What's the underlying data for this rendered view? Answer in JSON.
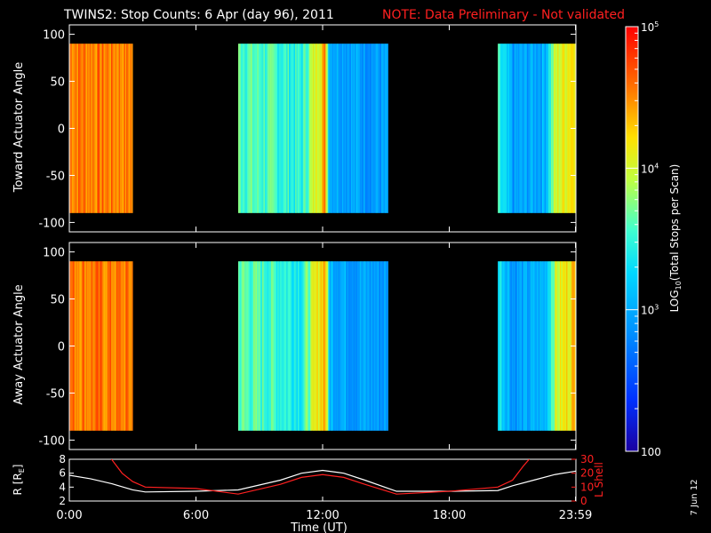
{
  "header": {
    "title": "TWINS2: Stop Counts:  6 Apr (day  96), 2011",
    "note": "NOTE: Data Preliminary - Not validated"
  },
  "footer": {
    "date_stamp": "7 Jun 12"
  },
  "colorbar": {
    "label": "LOG10(Total Stops per Scan)",
    "label_main": "LOG",
    "label_sub": "10",
    "label_rest": "(Total Stops per Scan)",
    "ticks": [
      {
        "value": 100,
        "label": "100"
      },
      {
        "value": 1000,
        "label": "10^3"
      },
      {
        "value": 10000,
        "label": "10^4"
      },
      {
        "value": 100000,
        "label": "10^5"
      }
    ],
    "range": [
      100,
      100000
    ],
    "scale": "log"
  },
  "colors": {
    "background": "#000000",
    "text": "#ffffff",
    "note": "#ff2020",
    "lshell": "#ff2020",
    "r_curve": "#ffffff"
  },
  "chart_data": [
    {
      "type": "heatmap",
      "panel": "toward",
      "ylabel": "Toward Actuator Angle",
      "ylim": [
        -110,
        110
      ],
      "yticks": [
        100,
        50,
        0,
        -50,
        -100
      ],
      "x_range_hours": [
        0,
        24
      ],
      "data_y_extent": [
        -90,
        90
      ],
      "coverage_hours": [
        [
          0.0,
          3.0
        ],
        [
          8.0,
          15.1
        ],
        [
          20.3,
          23.98
        ]
      ],
      "intensity_profile": [
        {
          "t": 0.0,
          "v": 0.86
        },
        {
          "t": 3.0,
          "v": 0.84
        },
        {
          "t": 8.0,
          "v": 0.55
        },
        {
          "t": 9.5,
          "v": 0.52
        },
        {
          "t": 11.0,
          "v": 0.48
        },
        {
          "t": 12.1,
          "v": 0.82
        },
        {
          "t": 12.3,
          "v": 0.36
        },
        {
          "t": 13.5,
          "v": 0.32
        },
        {
          "t": 15.1,
          "v": 0.3
        },
        {
          "t": 20.3,
          "v": 0.48
        },
        {
          "t": 21.0,
          "v": 0.3
        },
        {
          "t": 22.5,
          "v": 0.35
        },
        {
          "t": 23.0,
          "v": 0.65
        },
        {
          "t": 23.98,
          "v": 0.78
        }
      ]
    },
    {
      "type": "heatmap",
      "panel": "away",
      "ylabel": "Away Actuator Angle",
      "ylim": [
        -110,
        110
      ],
      "yticks": [
        100,
        50,
        0,
        -50,
        -100
      ],
      "x_range_hours": [
        0,
        24
      ],
      "data_y_extent": [
        -90,
        90
      ],
      "coverage_hours": [
        [
          0.0,
          3.0
        ],
        [
          8.0,
          15.1
        ],
        [
          20.3,
          23.98
        ]
      ],
      "intensity_profile": [
        {
          "t": 0.0,
          "v": 0.86
        },
        {
          "t": 3.0,
          "v": 0.84
        },
        {
          "t": 8.0,
          "v": 0.55
        },
        {
          "t": 9.5,
          "v": 0.52
        },
        {
          "t": 11.0,
          "v": 0.48
        },
        {
          "t": 12.1,
          "v": 0.82
        },
        {
          "t": 12.3,
          "v": 0.36
        },
        {
          "t": 13.5,
          "v": 0.32
        },
        {
          "t": 15.1,
          "v": 0.3
        },
        {
          "t": 20.3,
          "v": 0.48
        },
        {
          "t": 21.0,
          "v": 0.3
        },
        {
          "t": 22.5,
          "v": 0.35
        },
        {
          "t": 23.0,
          "v": 0.65
        },
        {
          "t": 23.98,
          "v": 0.78
        }
      ]
    },
    {
      "type": "line",
      "panel": "orbit",
      "xlabel": "Time (UT)",
      "x_tick_labels": [
        {
          "t": 0,
          "label": "0:00"
        },
        {
          "t": 6,
          "label": "6:00"
        },
        {
          "t": 12,
          "label": "12:00"
        },
        {
          "t": 18,
          "label": "18:00"
        },
        {
          "t": 23.98,
          "label": "23:59"
        }
      ],
      "ylabel_left": "R [RE]",
      "ylabel_left_main": "R [R",
      "ylabel_left_sub": "E",
      "ylabel_left_end": "]",
      "ylim_left": [
        2,
        8
      ],
      "yticks_left": [
        2,
        4,
        6,
        8
      ],
      "ylabel_right": "L Shell",
      "ylim_right": [
        0,
        30
      ],
      "yticks_right": [
        0,
        10,
        20,
        30
      ],
      "series": [
        {
          "name": "R [RE]",
          "axis": "left",
          "x": [
            0,
            1,
            2,
            3,
            3.6,
            6,
            8,
            10,
            11,
            12,
            13,
            14,
            15.5,
            18,
            20.3,
            21,
            22,
            23,
            24
          ],
          "y": [
            5.7,
            5.2,
            4.5,
            3.6,
            3.3,
            3.4,
            3.6,
            5.0,
            6.0,
            6.4,
            6.0,
            5.0,
            3.4,
            3.4,
            3.5,
            4.2,
            5.0,
            5.8,
            6.3
          ]
        },
        {
          "name": "L Shell",
          "axis": "right",
          "x": [
            1.9,
            2.5,
            3.0,
            3.6,
            6.0,
            8.0,
            10.0,
            11.0,
            12.0,
            13.0,
            14.0,
            15.5,
            18.0,
            20.3,
            21.0,
            21.5,
            21.9
          ],
          "y": [
            32,
            20,
            14,
            10,
            9,
            5,
            12,
            17,
            19,
            17,
            12,
            5,
            7,
            10,
            15,
            25,
            32
          ]
        }
      ]
    }
  ]
}
